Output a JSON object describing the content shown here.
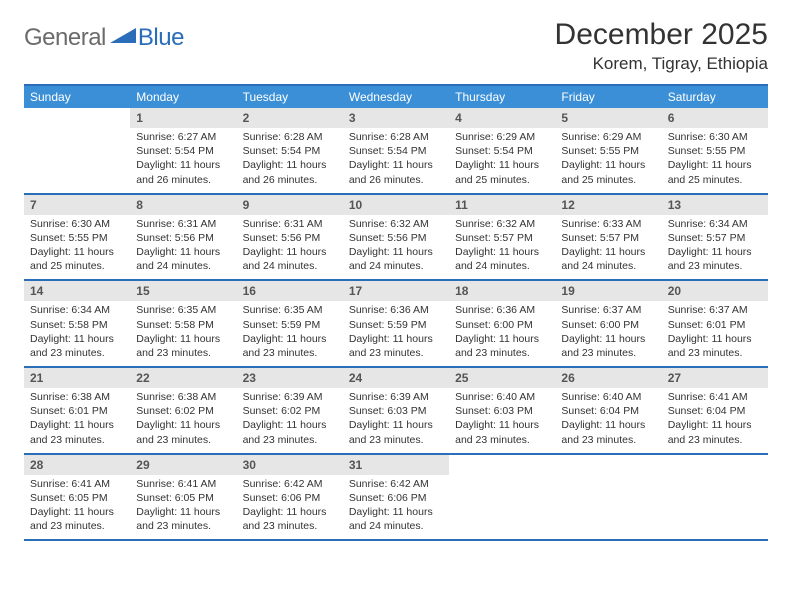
{
  "logo": {
    "general": "General",
    "blue": "Blue"
  },
  "title": "December 2025",
  "location": "Korem, Tigray, Ethiopia",
  "colors": {
    "header_bg": "#3a8fd6",
    "rule": "#2a6db8",
    "daynum_bg": "#e6e6e6",
    "text": "#333333",
    "logo_gray": "#6b6b6b",
    "logo_blue": "#2a6db8"
  },
  "day_header_fontsize": 12,
  "daynum_fontsize": 12,
  "body_fontsize": 10.5,
  "days": [
    "Sunday",
    "Monday",
    "Tuesday",
    "Wednesday",
    "Thursday",
    "Friday",
    "Saturday"
  ],
  "weeks": [
    [
      null,
      {
        "n": "1",
        "sr": "Sunrise: 6:27 AM",
        "ss": "Sunset: 5:54 PM",
        "d1": "Daylight: 11 hours",
        "d2": "and 26 minutes."
      },
      {
        "n": "2",
        "sr": "Sunrise: 6:28 AM",
        "ss": "Sunset: 5:54 PM",
        "d1": "Daylight: 11 hours",
        "d2": "and 26 minutes."
      },
      {
        "n": "3",
        "sr": "Sunrise: 6:28 AM",
        "ss": "Sunset: 5:54 PM",
        "d1": "Daylight: 11 hours",
        "d2": "and 26 minutes."
      },
      {
        "n": "4",
        "sr": "Sunrise: 6:29 AM",
        "ss": "Sunset: 5:54 PM",
        "d1": "Daylight: 11 hours",
        "d2": "and 25 minutes."
      },
      {
        "n": "5",
        "sr": "Sunrise: 6:29 AM",
        "ss": "Sunset: 5:55 PM",
        "d1": "Daylight: 11 hours",
        "d2": "and 25 minutes."
      },
      {
        "n": "6",
        "sr": "Sunrise: 6:30 AM",
        "ss": "Sunset: 5:55 PM",
        "d1": "Daylight: 11 hours",
        "d2": "and 25 minutes."
      }
    ],
    [
      {
        "n": "7",
        "sr": "Sunrise: 6:30 AM",
        "ss": "Sunset: 5:55 PM",
        "d1": "Daylight: 11 hours",
        "d2": "and 25 minutes."
      },
      {
        "n": "8",
        "sr": "Sunrise: 6:31 AM",
        "ss": "Sunset: 5:56 PM",
        "d1": "Daylight: 11 hours",
        "d2": "and 24 minutes."
      },
      {
        "n": "9",
        "sr": "Sunrise: 6:31 AM",
        "ss": "Sunset: 5:56 PM",
        "d1": "Daylight: 11 hours",
        "d2": "and 24 minutes."
      },
      {
        "n": "10",
        "sr": "Sunrise: 6:32 AM",
        "ss": "Sunset: 5:56 PM",
        "d1": "Daylight: 11 hours",
        "d2": "and 24 minutes."
      },
      {
        "n": "11",
        "sr": "Sunrise: 6:32 AM",
        "ss": "Sunset: 5:57 PM",
        "d1": "Daylight: 11 hours",
        "d2": "and 24 minutes."
      },
      {
        "n": "12",
        "sr": "Sunrise: 6:33 AM",
        "ss": "Sunset: 5:57 PM",
        "d1": "Daylight: 11 hours",
        "d2": "and 24 minutes."
      },
      {
        "n": "13",
        "sr": "Sunrise: 6:34 AM",
        "ss": "Sunset: 5:57 PM",
        "d1": "Daylight: 11 hours",
        "d2": "and 23 minutes."
      }
    ],
    [
      {
        "n": "14",
        "sr": "Sunrise: 6:34 AM",
        "ss": "Sunset: 5:58 PM",
        "d1": "Daylight: 11 hours",
        "d2": "and 23 minutes."
      },
      {
        "n": "15",
        "sr": "Sunrise: 6:35 AM",
        "ss": "Sunset: 5:58 PM",
        "d1": "Daylight: 11 hours",
        "d2": "and 23 minutes."
      },
      {
        "n": "16",
        "sr": "Sunrise: 6:35 AM",
        "ss": "Sunset: 5:59 PM",
        "d1": "Daylight: 11 hours",
        "d2": "and 23 minutes."
      },
      {
        "n": "17",
        "sr": "Sunrise: 6:36 AM",
        "ss": "Sunset: 5:59 PM",
        "d1": "Daylight: 11 hours",
        "d2": "and 23 minutes."
      },
      {
        "n": "18",
        "sr": "Sunrise: 6:36 AM",
        "ss": "Sunset: 6:00 PM",
        "d1": "Daylight: 11 hours",
        "d2": "and 23 minutes."
      },
      {
        "n": "19",
        "sr": "Sunrise: 6:37 AM",
        "ss": "Sunset: 6:00 PM",
        "d1": "Daylight: 11 hours",
        "d2": "and 23 minutes."
      },
      {
        "n": "20",
        "sr": "Sunrise: 6:37 AM",
        "ss": "Sunset: 6:01 PM",
        "d1": "Daylight: 11 hours",
        "d2": "and 23 minutes."
      }
    ],
    [
      {
        "n": "21",
        "sr": "Sunrise: 6:38 AM",
        "ss": "Sunset: 6:01 PM",
        "d1": "Daylight: 11 hours",
        "d2": "and 23 minutes."
      },
      {
        "n": "22",
        "sr": "Sunrise: 6:38 AM",
        "ss": "Sunset: 6:02 PM",
        "d1": "Daylight: 11 hours",
        "d2": "and 23 minutes."
      },
      {
        "n": "23",
        "sr": "Sunrise: 6:39 AM",
        "ss": "Sunset: 6:02 PM",
        "d1": "Daylight: 11 hours",
        "d2": "and 23 minutes."
      },
      {
        "n": "24",
        "sr": "Sunrise: 6:39 AM",
        "ss": "Sunset: 6:03 PM",
        "d1": "Daylight: 11 hours",
        "d2": "and 23 minutes."
      },
      {
        "n": "25",
        "sr": "Sunrise: 6:40 AM",
        "ss": "Sunset: 6:03 PM",
        "d1": "Daylight: 11 hours",
        "d2": "and 23 minutes."
      },
      {
        "n": "26",
        "sr": "Sunrise: 6:40 AM",
        "ss": "Sunset: 6:04 PM",
        "d1": "Daylight: 11 hours",
        "d2": "and 23 minutes."
      },
      {
        "n": "27",
        "sr": "Sunrise: 6:41 AM",
        "ss": "Sunset: 6:04 PM",
        "d1": "Daylight: 11 hours",
        "d2": "and 23 minutes."
      }
    ],
    [
      {
        "n": "28",
        "sr": "Sunrise: 6:41 AM",
        "ss": "Sunset: 6:05 PM",
        "d1": "Daylight: 11 hours",
        "d2": "and 23 minutes."
      },
      {
        "n": "29",
        "sr": "Sunrise: 6:41 AM",
        "ss": "Sunset: 6:05 PM",
        "d1": "Daylight: 11 hours",
        "d2": "and 23 minutes."
      },
      {
        "n": "30",
        "sr": "Sunrise: 6:42 AM",
        "ss": "Sunset: 6:06 PM",
        "d1": "Daylight: 11 hours",
        "d2": "and 23 minutes."
      },
      {
        "n": "31",
        "sr": "Sunrise: 6:42 AM",
        "ss": "Sunset: 6:06 PM",
        "d1": "Daylight: 11 hours",
        "d2": "and 24 minutes."
      },
      null,
      null,
      null
    ]
  ]
}
